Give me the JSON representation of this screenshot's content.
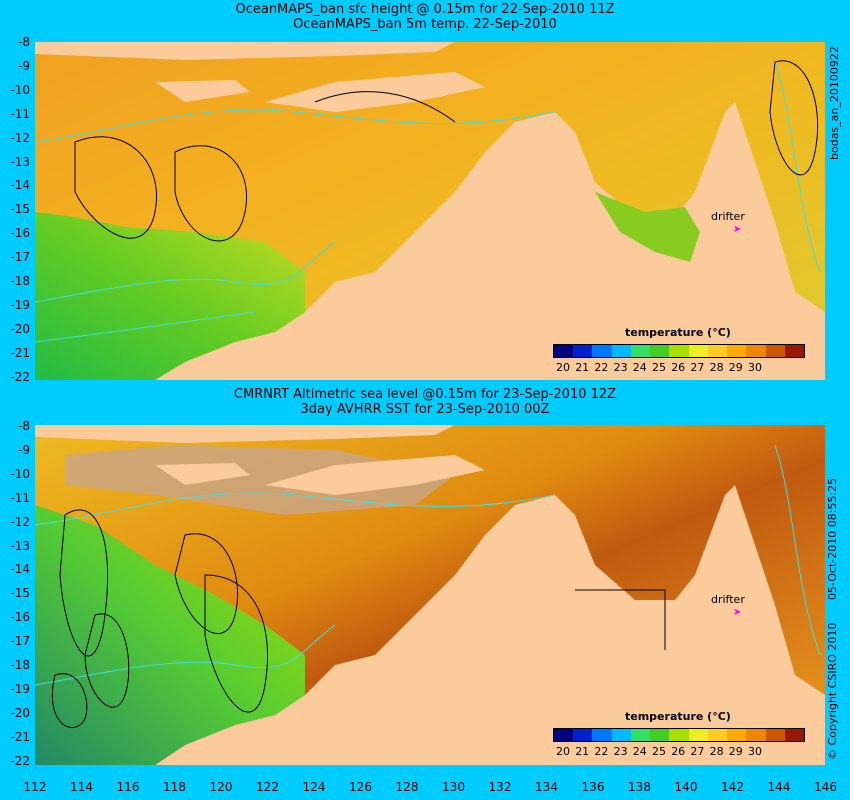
{
  "top": {
    "title_line1": "OceanMAPS_ban sfc height @ 0.15m for 22-Sep-2010 11Z",
    "title_line2": "OceanMAPS_ban 5m temp. 22-Sep-2010",
    "side_label": "bodas_an_20100922",
    "drifter_label": "drifter"
  },
  "bottom": {
    "title_line1": "CMRNRT Altimetric sea level  @0.15m  for 23-Sep-2010 12Z",
    "title_line2": "3day AVHRR SST for 23-Sep-2010 00Z",
    "side_label1": "© Copyright CSIRO 2010",
    "side_label2": "05-Oct-2010 08:55:25",
    "drifter_label": "drifter"
  },
  "colorbar": {
    "title": "temperature (°C)",
    "ticks": [
      "20",
      "21",
      "22",
      "23",
      "24",
      "25",
      "26",
      "27",
      "28",
      "29",
      "30"
    ],
    "colors": [
      "#00007f",
      "#0022cc",
      "#0077ff",
      "#00bbff",
      "#33dd66",
      "#44cc22",
      "#aadd00",
      "#eeee22",
      "#ffcc22",
      "#ffaa00",
      "#ee8800",
      "#cc5500",
      "#991800"
    ]
  },
  "axes": {
    "lat_labels": [
      "-8",
      "-9",
      "-10",
      "-11",
      "-12",
      "-13",
      "-14",
      "-15",
      "-16",
      "-17",
      "-18",
      "-19",
      "-20",
      "-21",
      "-22"
    ],
    "lon_labels": [
      "112",
      "114",
      "116",
      "118",
      "120",
      "122",
      "124",
      "126",
      "128",
      "130",
      "132",
      "134",
      "136",
      "138",
      "140",
      "142",
      "144",
      "146"
    ]
  },
  "colors": {
    "background": "#00ccff",
    "land": "#fbcb9c",
    "contour": "#44dddd",
    "drifter": "#ff00ff"
  }
}
